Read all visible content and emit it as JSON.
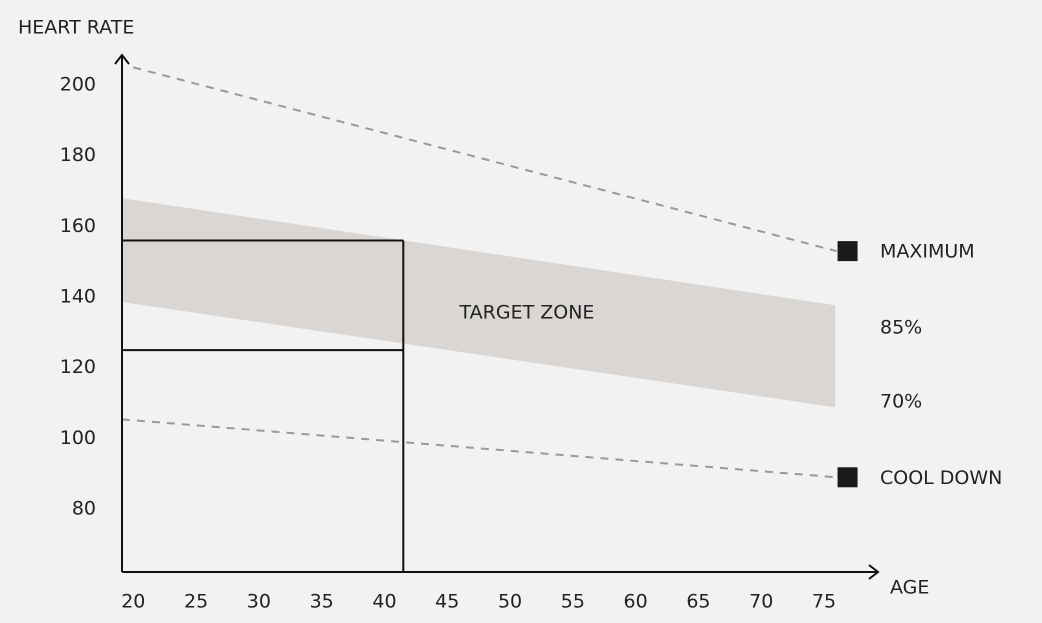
{
  "chart_data": {
    "type": "line",
    "x_label": "AGE",
    "y_label": "HEART RATE",
    "xlim": [
      19.1,
      79.3
    ],
    "ylim": [
      62.2,
      208.5
    ],
    "xticks": [
      20,
      25,
      30,
      35,
      40,
      45,
      50,
      55,
      60,
      65,
      70,
      75
    ],
    "yticks": [
      80,
      100,
      120,
      140,
      160,
      180,
      200
    ],
    "grid": false,
    "series": [
      {
        "name": "MAXIMUM",
        "color": "#999999",
        "x": [
          20,
          76
        ],
        "values": [
          205,
          153
        ]
      },
      {
        "name": "COOL DOWN",
        "color": "#999999",
        "x": [
          19.1,
          76
        ],
        "values": [
          105.4,
          89
        ]
      }
    ],
    "band": {
      "name": "TARGET ZONE",
      "color": "#d9d6d3",
      "x": [
        19.1,
        75.9
      ],
      "upper": [
        168,
        137.7
      ],
      "lower": [
        138.6,
        108.8
      ],
      "labels": [
        "85%",
        "70%"
      ]
    },
    "reference": {
      "x": 41.5,
      "y": [
        156,
        125
      ]
    }
  }
}
